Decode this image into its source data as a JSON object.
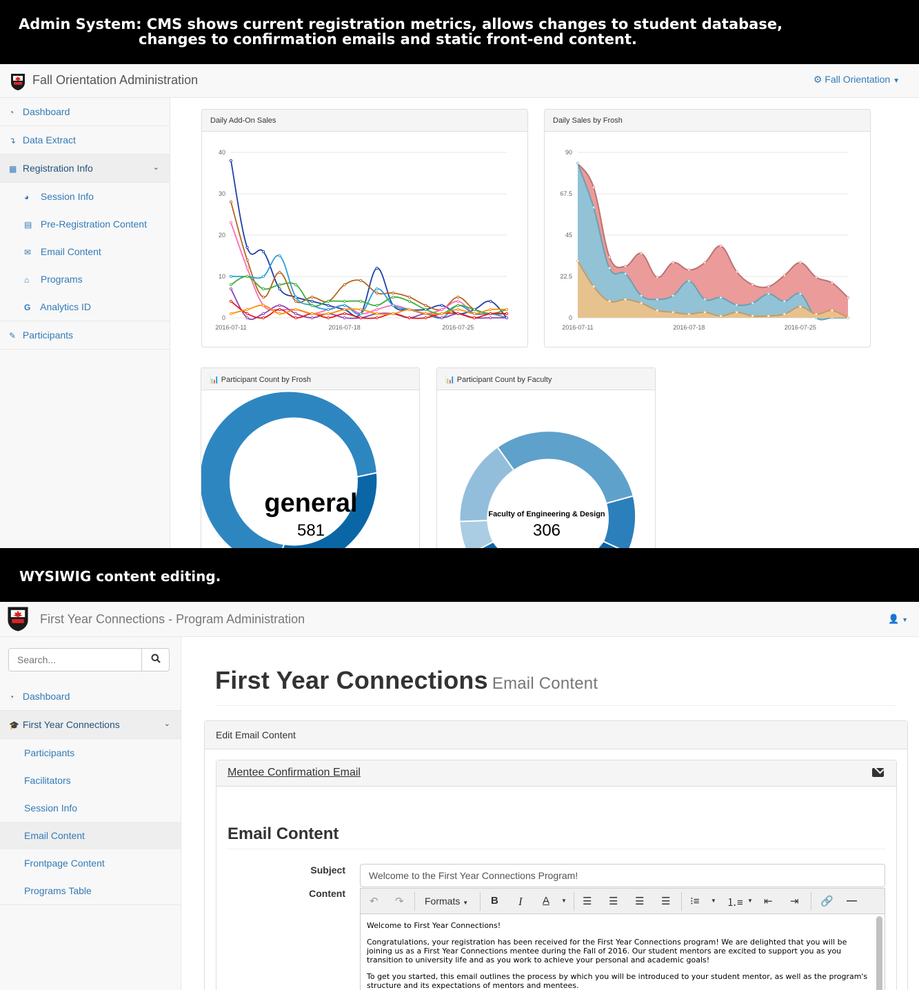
{
  "banner1": {
    "line1": "Admin System: CMS shows current registration metrics, allows changes to student database,",
    "line2": "changes to confirmation emails and static front-end content."
  },
  "banner2": {
    "text": "WYSIWIG content editing."
  },
  "admin": {
    "brand": "Fall Orientation Administration",
    "menu_label": "Fall Orientation",
    "nav": {
      "dashboard": "Dashboard",
      "data_extract": "Data Extract",
      "registration_info": "Registration Info",
      "sub": {
        "session_info": "Session Info",
        "pre_registration": "Pre-Registration Content",
        "email_content": "Email Content",
        "programs": "Programs",
        "analytics_id": "Analytics ID"
      },
      "participants": "Participants"
    },
    "panels": {
      "addon": "Daily Add-On Sales",
      "frosh_sales": "Daily Sales by Frosh",
      "count_frosh": "Participant Count by Frosh",
      "count_faculty": "Participant Count by Faculty"
    },
    "donut_frosh": {
      "label": "general",
      "value": "581"
    },
    "donut_faculty": {
      "label": "Faculty of Engineering & Design",
      "value": "306"
    },
    "colors": {
      "link": "#337ab7",
      "area_red": "#e8908f",
      "area_blue": "#87c7dc",
      "area_orange": "#f0c287"
    }
  },
  "chart_data": [
    {
      "type": "line",
      "title": "Daily Add-On Sales",
      "x": [
        "2016-07-11",
        "2016-07-12",
        "2016-07-13",
        "2016-07-14",
        "2016-07-15",
        "2016-07-16",
        "2016-07-17",
        "2016-07-18",
        "2016-07-19",
        "2016-07-20",
        "2016-07-21",
        "2016-07-22",
        "2016-07-23",
        "2016-07-24",
        "2016-07-25",
        "2016-07-26",
        "2016-07-27",
        "2016-07-28"
      ],
      "xticks": [
        "2016-07-11",
        "2016-07-18",
        "2016-07-25"
      ],
      "ylim": [
        0,
        40
      ],
      "yticks": [
        0,
        10,
        20,
        30,
        40
      ],
      "series": [
        {
          "color": "#1f3fa8",
          "values": [
            38,
            17,
            16,
            7,
            5,
            4,
            3,
            2,
            1,
            12,
            3,
            2,
            2,
            3,
            1,
            2,
            4,
            0
          ]
        },
        {
          "color": "#b5651d",
          "values": [
            28,
            14,
            5,
            11,
            4,
            5,
            4,
            8,
            9,
            6,
            6,
            5,
            3,
            2,
            5,
            2,
            1,
            1
          ]
        },
        {
          "color": "#ff69b4",
          "values": [
            23,
            12,
            3,
            2,
            2,
            1,
            2,
            3,
            1,
            2,
            3,
            2,
            1,
            2,
            4,
            1,
            1,
            0
          ]
        },
        {
          "color": "#2a9fd6",
          "values": [
            10,
            10,
            10,
            15,
            5,
            3,
            2,
            3,
            1,
            7,
            3,
            2,
            1,
            0,
            3,
            1,
            1,
            0
          ]
        },
        {
          "color": "#3cae3c",
          "values": [
            8,
            10,
            7,
            8,
            8,
            3,
            4,
            4,
            4,
            3,
            5,
            4,
            2,
            1,
            3,
            2,
            1,
            2
          ]
        },
        {
          "color": "#8e44ad",
          "values": [
            7,
            0,
            1,
            3,
            1,
            0,
            1,
            0,
            0,
            1,
            1,
            0,
            1,
            0,
            1,
            0,
            0,
            0
          ]
        },
        {
          "color": "#e31a1c",
          "values": [
            4,
            1,
            0,
            2,
            0,
            1,
            0,
            1,
            0,
            0,
            1,
            0,
            0,
            1,
            1,
            0,
            1,
            1
          ]
        },
        {
          "color": "#ff8c00",
          "values": [
            1,
            2,
            3,
            1,
            2,
            1,
            1,
            2,
            2,
            1,
            1,
            2,
            1,
            1,
            2,
            1,
            2,
            2
          ]
        }
      ]
    },
    {
      "type": "area",
      "title": "Daily Sales by Frosh",
      "x": [
        "2016-07-11",
        "2016-07-12",
        "2016-07-13",
        "2016-07-14",
        "2016-07-15",
        "2016-07-16",
        "2016-07-17",
        "2016-07-18",
        "2016-07-19",
        "2016-07-20",
        "2016-07-21",
        "2016-07-22",
        "2016-07-23",
        "2016-07-24",
        "2016-07-25",
        "2016-07-26",
        "2016-07-27",
        "2016-07-28"
      ],
      "xticks": [
        "2016-07-11",
        "2016-07-18",
        "2016-07-25"
      ],
      "ylim": [
        0,
        90
      ],
      "yticks": [
        "0",
        "22.5",
        "45",
        "67.5",
        "90"
      ],
      "series": [
        {
          "color": "#e8908f",
          "values": [
            84,
            71,
            33,
            28,
            35,
            22,
            30,
            26,
            30,
            39,
            25,
            18,
            17,
            23,
            30,
            22,
            19,
            11
          ]
        },
        {
          "color": "#87c7dc",
          "values": [
            84,
            60,
            27,
            24,
            12,
            10,
            12,
            20,
            10,
            11,
            7,
            8,
            13,
            9,
            13,
            0,
            0,
            0
          ]
        },
        {
          "color": "#f0c287",
          "values": [
            31,
            17,
            9,
            10,
            8,
            4,
            3,
            2,
            3,
            1,
            3,
            1,
            1,
            2,
            6,
            2,
            4,
            0
          ]
        }
      ]
    },
    {
      "type": "pie",
      "title": "Participant Count by Frosh",
      "center_label": "general",
      "center_value": 581
    },
    {
      "type": "pie",
      "title": "Participant Count by Faculty",
      "center_label": "Faculty of Engineering & Design",
      "center_value": 306
    }
  ],
  "fyc": {
    "brand": "First Year Connections - Program Administration",
    "search_placeholder": "Search...",
    "nav": {
      "dashboard": "Dashboard",
      "fyc": "First Year Connections",
      "sub": {
        "participants": "Participants",
        "facilitators": "Facilitators",
        "session_info": "Session Info",
        "email_content": "Email Content",
        "frontpage": "Frontpage Content",
        "programs_table": "Programs Table"
      }
    },
    "page_title": "First Year Connections",
    "page_subtitle": "Email Content",
    "outer_panel": "Edit Email Content",
    "inner_panel": "Mentee Confirmation Email",
    "section": "Email Content",
    "subject_label": "Subject",
    "subject_value": "Welcome to the First Year Connections Program!",
    "content_label": "Content",
    "toolbar": {
      "formats": "Formats"
    },
    "editor": {
      "p1": "Welcome to First Year Connections!",
      "p2": "Congratulations, your registration has been received for the First Year Connections program! We are delighted that you will be joining us as a First Year Connections mentee during the Fall of 2016. Our student mentors are excited to support you as you transition to university life and as you work to achieve your personal and academic goals!",
      "p3": "To get you started, this email outlines the process by which you will be introduced to your student mentor, as well as the program's structure and its expectations of mentors and mentees."
    }
  }
}
